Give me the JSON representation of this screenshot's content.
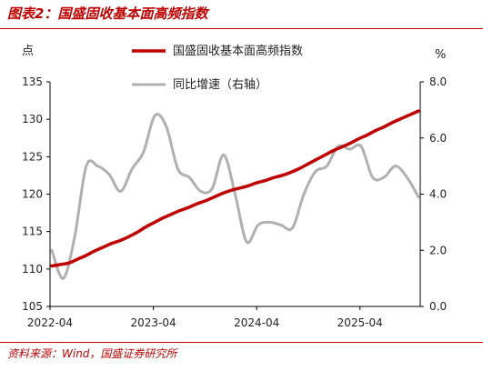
{
  "figure": {
    "title": "图表2：国盛固收基本面高频指数",
    "source": "资料来源：Wind，国盛证券研究所"
  },
  "chart_data": {
    "type": "line",
    "left_unit": "点",
    "right_unit": "%",
    "y_left": {
      "min": 105,
      "max": 135,
      "ticks": [
        105,
        110,
        115,
        120,
        125,
        130,
        135
      ]
    },
    "y_right": {
      "min": 0,
      "max": 8,
      "ticks": [
        "0.0",
        "2.0",
        "4.0",
        "6.0",
        "8.0"
      ]
    },
    "x_ticks": [
      "2022-04",
      "2023-04",
      "2024-04",
      "2025-04"
    ],
    "x_tick_index": [
      0,
      12,
      24,
      36
    ],
    "x_count": 44,
    "legend": {
      "placement": "top-center"
    },
    "series": [
      {
        "name": "国盛固收基本面高频指数",
        "axis": "left",
        "color": "#c00000",
        "values": [
          110.4,
          110.6,
          110.8,
          111.3,
          111.8,
          112.4,
          112.9,
          113.4,
          113.8,
          114.3,
          114.9,
          115.6,
          116.2,
          116.8,
          117.3,
          117.8,
          118.2,
          118.7,
          119.1,
          119.6,
          120.1,
          120.5,
          120.8,
          121.1,
          121.5,
          121.8,
          122.2,
          122.5,
          122.9,
          123.4,
          124.0,
          124.6,
          125.2,
          125.8,
          126.3,
          126.8,
          127.4,
          127.9,
          128.5,
          129.0,
          129.6,
          130.1,
          130.6,
          131.1
        ]
      },
      {
        "name": "同比增速（右轴）",
        "axis": "right",
        "color": "#b0b0b0",
        "values": [
          2.0,
          1.0,
          2.5,
          5.0,
          5.0,
          4.7,
          4.1,
          4.9,
          5.5,
          6.8,
          6.4,
          4.9,
          4.6,
          4.1,
          4.2,
          5.4,
          4.0,
          2.3,
          2.9,
          3.0,
          2.9,
          2.8,
          4.0,
          4.8,
          5.0,
          5.7,
          5.6,
          5.7,
          4.6,
          4.6,
          5.0,
          4.6,
          3.9
        ]
      }
    ]
  }
}
